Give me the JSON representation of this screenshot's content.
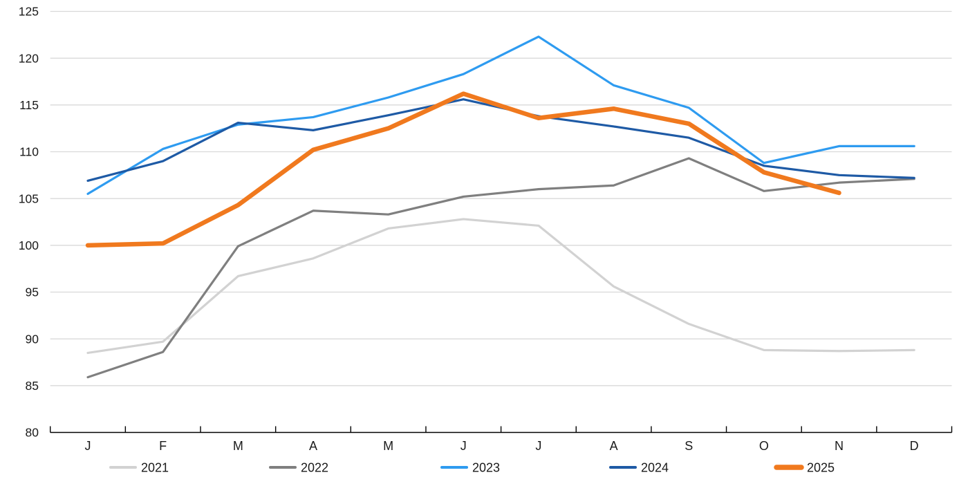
{
  "chart_data": {
    "type": "line",
    "title": "",
    "xlabel": "",
    "ylabel": "",
    "x_categories": [
      "J",
      "F",
      "M",
      "A",
      "M",
      "J",
      "J",
      "A",
      "S",
      "O",
      "N",
      "D"
    ],
    "ylim": [
      80,
      125
    ],
    "y_ticks": [
      80,
      85,
      90,
      95,
      100,
      105,
      110,
      115,
      120,
      125
    ],
    "grid": "horizontal",
    "legend_position": "bottom",
    "series": [
      {
        "name": "2021",
        "color": "#d2d2d2",
        "width": 3.2,
        "values": [
          88.5,
          89.7,
          96.7,
          98.6,
          101.8,
          102.8,
          102.1,
          95.6,
          91.6,
          88.8,
          88.7,
          88.8
        ]
      },
      {
        "name": "2022",
        "color": "#7f7f7f",
        "width": 3.2,
        "values": [
          85.9,
          88.6,
          99.9,
          103.7,
          103.3,
          105.2,
          106.0,
          106.4,
          109.3,
          105.8,
          106.7,
          107.1
        ]
      },
      {
        "name": "2023",
        "color": "#2e9bf0",
        "width": 3.2,
        "values": [
          105.5,
          110.3,
          112.9,
          113.7,
          115.8,
          118.3,
          122.3,
          117.1,
          114.7,
          108.8,
          110.6,
          110.6
        ]
      },
      {
        "name": "2024",
        "color": "#1e5aa5",
        "width": 3.2,
        "values": [
          106.9,
          109.0,
          113.1,
          112.3,
          113.9,
          115.6,
          113.8,
          112.7,
          111.5,
          108.5,
          107.5,
          107.2
        ]
      },
      {
        "name": "2025",
        "color": "#f0791e",
        "width": 6.5,
        "values": [
          100.0,
          100.2,
          104.3,
          110.2,
          112.5,
          116.2,
          113.6,
          114.6,
          113.0,
          107.8,
          105.6,
          null
        ]
      }
    ]
  },
  "style": {
    "gridline_color": "#d9d9d9",
    "axis_color": "#000000",
    "label_color": "#1a1a1a"
  }
}
